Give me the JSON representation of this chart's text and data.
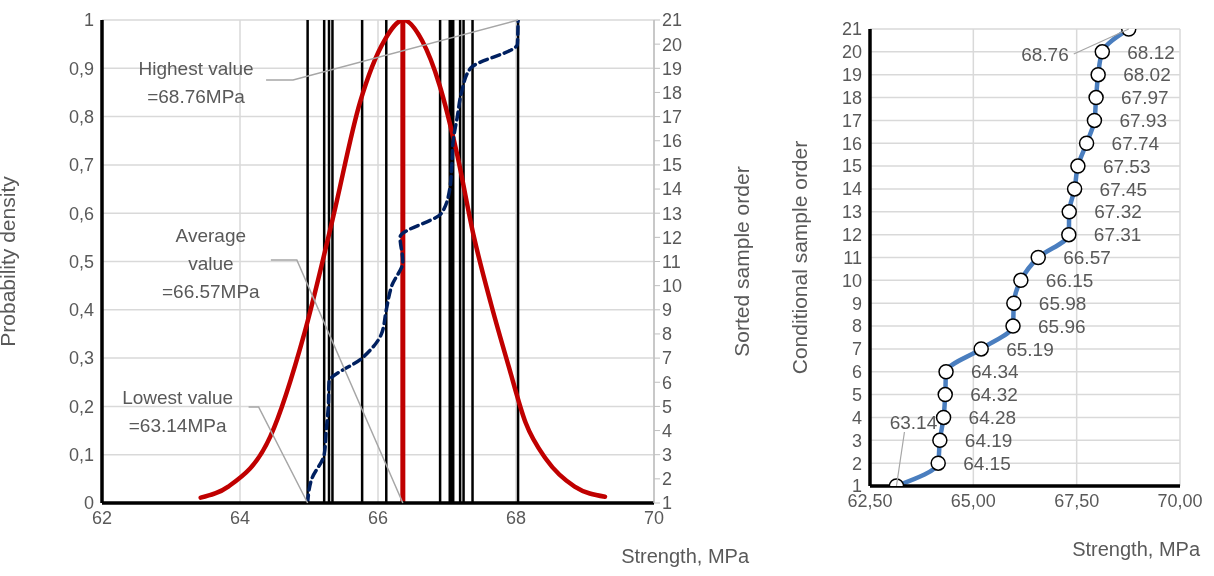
{
  "chart_data": [
    {
      "type": "line",
      "xlabel": "Strength, MPa",
      "ylabel": "Probability density",
      "y2label": "Sorted sample order",
      "xlim": [
        62,
        70
      ],
      "xticks": [
        62,
        64,
        66,
        68,
        70
      ],
      "ylim": [
        0,
        1
      ],
      "yticks": [
        0,
        {
          "value": 0.1,
          "label": "0,1"
        },
        {
          "value": 0.2,
          "label": "0,2"
        },
        {
          "value": 0.3,
          "label": "0,3"
        },
        {
          "value": 0.4,
          "label": "0,4"
        },
        {
          "value": 0.5,
          "label": "0,5"
        },
        {
          "value": 0.6,
          "label": "0,6"
        },
        {
          "value": 0.7,
          "label": "0,7"
        },
        {
          "value": 0.8,
          "label": "0,8"
        },
        {
          "value": 0.9,
          "label": "0,9"
        },
        1
      ],
      "y2lim": [
        1,
        21
      ],
      "y2ticks": [
        1,
        2,
        3,
        4,
        5,
        6,
        7,
        8,
        9,
        10,
        11,
        12,
        13,
        14,
        15,
        16,
        17,
        18,
        19,
        20,
        21
      ],
      "grid": true,
      "marker": "none",
      "series": [
        {
          "type": "line",
          "color": "#c00000",
          "line_style": "solid",
          "x": [
            63.43,
            63.83,
            64.44,
            64.94,
            65.34,
            65.74,
            66.09,
            66.37,
            66.64,
            66.89,
            67.14,
            67.39,
            67.64,
            67.89,
            68.14,
            68.44,
            68.85,
            69.29
          ],
          "values": [
            0.011,
            0.034,
            0.138,
            0.355,
            0.586,
            0.83,
            0.957,
            1,
            0.957,
            0.866,
            0.726,
            0.551,
            0.411,
            0.285,
            0.166,
            0.09,
            0.034,
            0.013
          ]
        },
        {
          "type": "line",
          "axis": "y2",
          "color": "#002060",
          "line_style": "dashed",
          "x": [
            64.98,
            65.04,
            65.22,
            65.25,
            65.28,
            65.29,
            65.77,
            66.05,
            66.12,
            66.2,
            66.36,
            66.32,
            66.92,
            67.04,
            67.07,
            67.09,
            67.15,
            67.21,
            67.34,
            68.02,
            68.03
          ],
          "values": [
            1,
            2,
            3,
            4,
            5,
            6,
            7,
            8,
            9,
            10,
            11,
            12,
            13,
            14,
            15,
            16,
            17,
            18,
            19,
            20,
            21
          ]
        }
      ],
      "ref_lines": [
        {
          "axis": "x",
          "value": 64.98,
          "color": "#000000"
        },
        {
          "axis": "x",
          "value": 65.22,
          "color": "#000000"
        },
        {
          "axis": "x",
          "value": 65.29,
          "color": "#000000"
        },
        {
          "axis": "x",
          "value": 65.34,
          "color": "#000000"
        },
        {
          "axis": "x",
          "value": 65.77,
          "color": "#000000"
        },
        {
          "axis": "x",
          "value": 66.12,
          "color": "#000000"
        },
        {
          "axis": "x",
          "value": 66.9,
          "color": "#000000"
        },
        {
          "axis": "x",
          "value": 67.04,
          "color": "#000000"
        },
        {
          "axis": "x",
          "value": 67.07,
          "color": "#000000"
        },
        {
          "axis": "x",
          "value": 67.09,
          "color": "#000000"
        },
        {
          "axis": "x",
          "value": 67.19,
          "color": "#000000"
        },
        {
          "axis": "x",
          "value": 67.24,
          "color": "#000000"
        },
        {
          "axis": "x",
          "value": 67.37,
          "color": "#000000"
        },
        {
          "axis": "x",
          "value": 68.03,
          "color": "#000000"
        },
        {
          "axis": "x",
          "value": 66.36,
          "color": "#c00000"
        }
      ],
      "annotations": [
        {
          "text": "Highest value\n=68.76MPa",
          "x": 68.03,
          "y": 1
        },
        {
          "text": "Average\nvalue\n=66.57MPa",
          "x": 66.36,
          "y": 0
        },
        {
          "text": "Lowest value\n=63.14MPa",
          "x": 64.98,
          "y": 0
        }
      ]
    },
    {
      "type": "line",
      "orientation": "horizontal",
      "xlabel": "Strength, MPa",
      "ylabel": "Conditional sample order",
      "categories": [
        "21",
        "20",
        "19",
        "18",
        "17",
        "16",
        "15",
        "14",
        "13",
        "12",
        "11",
        "10",
        "9",
        "8",
        "7",
        "6",
        "5",
        "4",
        "3",
        "2",
        "1"
      ],
      "xlim": [
        62.5,
        70
      ],
      "xticks": [
        {
          "value": 62.5,
          "label": "62,50"
        },
        {
          "value": 65,
          "label": "65,00"
        },
        {
          "value": 67.5,
          "label": "67,50"
        },
        {
          "value": 70,
          "label": "70,00"
        }
      ],
      "grid": true,
      "marker": "circle",
      "data_labels": true,
      "series": [
        {
          "color": "#4a7ebf",
          "values": [
            68.76,
            68.12,
            68.02,
            67.97,
            67.93,
            67.74,
            67.53,
            67.45,
            67.32,
            67.31,
            66.57,
            66.15,
            65.98,
            65.96,
            65.19,
            64.34,
            64.32,
            64.28,
            64.19,
            64.15,
            63.14
          ]
        }
      ]
    }
  ]
}
